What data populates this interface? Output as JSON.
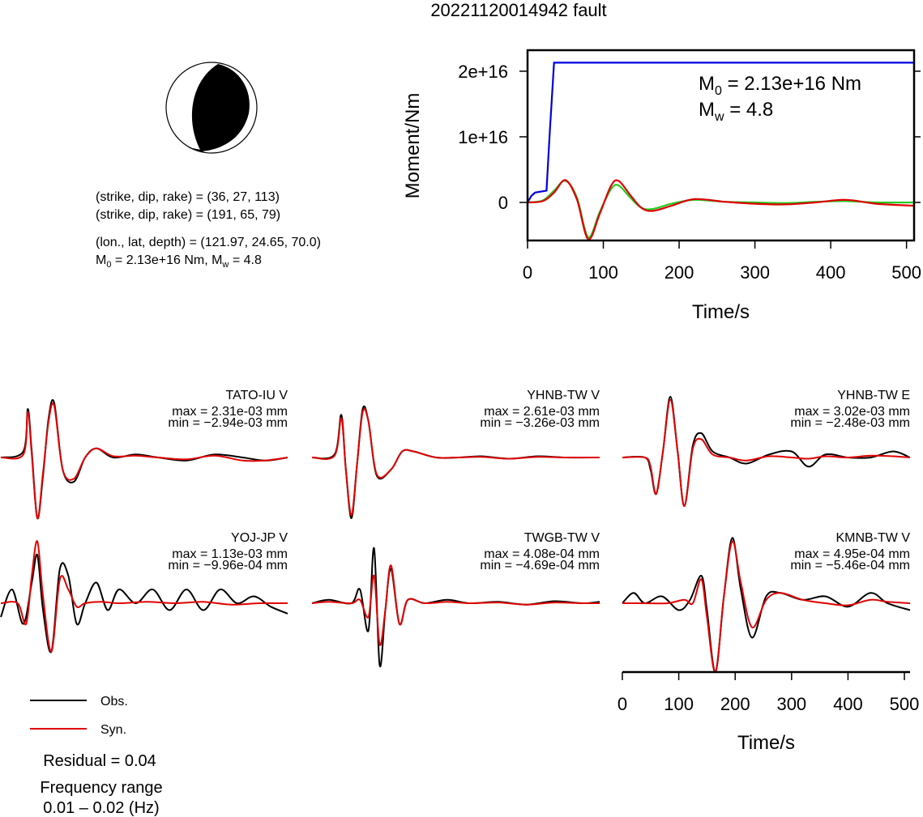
{
  "title": "20221120014942 fault",
  "mechanism": {
    "plane1": "(strike, dip, rake) = (36, 27, 113)",
    "plane2": "(strike, dip, rake) = (191, 65, 79)",
    "location": "(lon., lat, depth) = (121.97, 24.65, 70.0)",
    "moment_prefix": "M",
    "moment_sub": "0",
    "moment_mid": " = 2.13e+16 Nm, M",
    "moment_sub2": "w",
    "moment_suffix": " = 4.8"
  },
  "legend": {
    "obs": "Obs.",
    "syn": "Syn."
  },
  "residual": "Residual = 0.04",
  "freq_title": "Frequency range",
  "freq_value": "0.01 – 0.02 (Hz)",
  "colors": {
    "obs": "#000000",
    "syn": "#e00000",
    "cumulative": "#0000dd",
    "stf_green": "#22cc22"
  },
  "chart_data": [
    {
      "type": "line",
      "name": "moment-function",
      "xlabel": "Time/s",
      "ylabel": "Moment/Nm",
      "xlim": [
        0,
        510
      ],
      "ylim": [
        -5800000000000000.0,
        2.32e+16
      ],
      "xticks": [
        0,
        100,
        200,
        300,
        400,
        500
      ],
      "yticks": [
        0,
        1e+16,
        2e+16
      ],
      "ytick_labels": [
        "0",
        "1e+16",
        "2e+16"
      ],
      "annotation": {
        "m0_base": "M",
        "m0_sub": "0",
        "m0_rest": " = 2.13e+16 Nm",
        "mw_base": "M",
        "mw_sub": "w",
        "mw_rest": " = 4.8"
      },
      "series": [
        {
          "color": "#0000dd",
          "x": [
            0,
            5,
            10,
            25,
            29,
            35,
            510
          ],
          "y": [
            0,
            1000000000000000.0,
            1500000000000000.0,
            1800000000000000.0,
            1e+16,
            2.13e+16,
            2.13e+16
          ]
        },
        {
          "color": "#22cc22",
          "x": [
            0,
            20,
            35,
            50,
            65,
            80,
            95,
            110,
            120,
            135,
            150,
            165,
            190,
            220,
            260,
            300,
            340,
            380,
            420,
            460,
            510
          ],
          "y": [
            0,
            300000000000000.0,
            1800000000000000.0,
            3300000000000000.0,
            800000000000000.0,
            -5300000000000000.0,
            -1500000000000000.0,
            2000000000000000.0,
            2600000000000000.0,
            800000000000000.0,
            -800000000000000.0,
            -1000000000000000.0,
            -200000000000000.0,
            400000000000000.0,
            100000000000000.0,
            0,
            -100000000000000.0,
            100000000000000.0,
            200000000000000.0,
            0,
            0
          ]
        },
        {
          "color": "#e00000",
          "x": [
            0,
            20,
            35,
            50,
            65,
            80,
            95,
            110,
            120,
            135,
            150,
            165,
            190,
            220,
            260,
            300,
            340,
            380,
            420,
            460,
            510
          ],
          "y": [
            0,
            200000000000000.0,
            1500000000000000.0,
            3400000000000000.0,
            500000000000000.0,
            -5600000000000000.0,
            -1800000000000000.0,
            2500000000000000.0,
            3300000000000000.0,
            1200000000000000.0,
            -800000000000000.0,
            -1300000000000000.0,
            -500000000000000.0,
            500000000000000.0,
            100000000000000.0,
            -200000000000000.0,
            -300000000000000.0,
            0,
            400000000000000.0,
            -200000000000000.0,
            -500000000000000.0
          ]
        }
      ]
    },
    {
      "type": "line",
      "name": "waveforms",
      "xlabel": "Time/s",
      "xlim": [
        0,
        510
      ],
      "xticks": [
        0,
        100,
        200,
        300,
        400,
        500
      ],
      "stations": [
        {
          "label": "TATO-IU V",
          "max": "max = 2.31e-03 mm",
          "min": "min = −2.94e-03 mm",
          "obs": {
            "x": [
              0,
              40,
              48,
              55,
              65,
              75,
              85,
              95,
              110,
              130,
              150,
              170,
              200,
              240,
              280,
              330,
              380,
              430,
              470,
              510
            ],
            "y": [
              0,
              0.1,
              0.8,
              0.1,
              -1.0,
              -0.3,
              0.65,
              0.9,
              -0.2,
              -0.4,
              0,
              0.15,
              0,
              0.05,
              0,
              -0.05,
              0.05,
              0,
              -0.05,
              0
            ]
          },
          "syn": {
            "x": [
              0,
              40,
              48,
              55,
              65,
              75,
              85,
              95,
              110,
              130,
              150,
              170,
              200,
              240,
              280,
              330,
              380,
              430,
              470,
              510
            ],
            "y": [
              0,
              0.05,
              0.75,
              0.05,
              -1.0,
              -0.25,
              0.6,
              0.85,
              -0.2,
              -0.35,
              0,
              0.15,
              0.02,
              0.03,
              0,
              -0.03,
              0.03,
              -0.05,
              -0.05,
              0
            ]
          }
        },
        {
          "label": "YHNB-TW V",
          "max": "max = 2.61e-03 mm",
          "min": "min = −3.26e-03 mm",
          "obs": {
            "x": [
              0,
              40,
              52,
              60,
              70,
              80,
              90,
              100,
              115,
              140,
              160,
              180,
              220,
              260,
              300,
              350,
              400,
              450,
              510
            ],
            "y": [
              0,
              0.05,
              0.7,
              -0.2,
              -1.0,
              -0.1,
              0.8,
              0.6,
              -0.3,
              -0.2,
              0.1,
              0.1,
              0,
              0,
              0.02,
              -0.02,
              0.02,
              0,
              0
            ]
          },
          "syn": {
            "x": [
              0,
              40,
              52,
              60,
              70,
              80,
              90,
              100,
              115,
              140,
              160,
              180,
              220,
              260,
              300,
              350,
              400,
              450,
              510
            ],
            "y": [
              0,
              0.03,
              0.65,
              -0.2,
              -0.95,
              -0.1,
              0.75,
              0.6,
              -0.28,
              -0.2,
              0.1,
              0.1,
              0,
              0,
              0.01,
              -0.02,
              0.01,
              0,
              0
            ]
          }
        },
        {
          "label": "YHNB-TW E",
          "max": "max = 3.02e-03 mm",
          "min": "min = −2.48e-03 mm",
          "obs": {
            "x": [
              0,
              40,
              50,
              60,
              72,
              85,
              98,
              110,
              125,
              140,
              160,
              190,
              220,
              260,
              300,
              330,
              360,
              400,
              440,
              480,
              510
            ],
            "y": [
              0,
              0,
              -0.2,
              -0.6,
              0.1,
              1.0,
              0.1,
              -0.8,
              0.2,
              0.4,
              0.1,
              0,
              -0.1,
              0.05,
              0.1,
              -0.15,
              0.05,
              0,
              0,
              0.1,
              0
            ]
          },
          "syn": {
            "x": [
              0,
              40,
              50,
              60,
              72,
              85,
              98,
              110,
              125,
              140,
              160,
              190,
              220,
              260,
              300,
              330,
              360,
              400,
              440,
              480,
              510
            ],
            "y": [
              0,
              0,
              -0.15,
              -0.6,
              0.1,
              0.95,
              0.1,
              -0.8,
              0.15,
              0.3,
              0.05,
              0,
              -0.05,
              0.02,
              0,
              -0.02,
              0.02,
              0,
              0.03,
              0.02,
              0
            ]
          }
        },
        {
          "label": "YOJ-JP V",
          "max": "max = 1.13e-03 mm",
          "min": "min = −9.96e-04 mm",
          "obs": {
            "x": [
              0,
              20,
              40,
              55,
              65,
              75,
              90,
              105,
              120,
              135,
              150,
              170,
              190,
              210,
              240,
              270,
              300,
              330,
              360,
              390,
              420,
              450,
              480,
              510
            ],
            "y": [
              -0.2,
              0.2,
              -0.3,
              0.3,
              0.7,
              -0.1,
              -0.7,
              0.5,
              0.4,
              -0.3,
              0,
              0.3,
              -0.1,
              0.2,
              0,
              0.2,
              -0.1,
              0.2,
              -0.1,
              0.2,
              0,
              0.1,
              -0.05,
              -0.15
            ]
          },
          "syn": {
            "x": [
              0,
              30,
              45,
              55,
              65,
              75,
              90,
              105,
              120,
              135,
              150,
              180,
              210,
              260,
              310,
              360,
              410,
              460,
              510
            ],
            "y": [
              0,
              0,
              -0.3,
              0.4,
              0.9,
              0.1,
              -0.7,
              0.35,
              0.2,
              -0.05,
              0,
              0.02,
              0,
              0.02,
              0,
              0.02,
              -0.02,
              0,
              0
            ]
          }
        },
        {
          "label": "TWGB-TW V",
          "max": "max = 4.08e-04 mm",
          "min": "min = −4.69e-04 mm",
          "obs": {
            "x": [
              0,
              30,
              70,
              85,
              100,
              110,
              120,
              130,
              140,
              155,
              170,
              200,
              240,
              280,
              330,
              380,
              430,
              480,
              510
            ],
            "y": [
              0,
              0.05,
              0,
              0.2,
              -0.4,
              0.8,
              -0.9,
              -0.1,
              0.5,
              -0.3,
              0.05,
              0,
              0.05,
              0,
              0.02,
              -0.02,
              0.03,
              0,
              0.02
            ]
          },
          "syn": {
            "x": [
              0,
              30,
              70,
              85,
              100,
              110,
              120,
              130,
              140,
              155,
              170,
              200,
              240,
              280,
              330,
              380,
              430,
              480,
              510
            ],
            "y": [
              0,
              0.02,
              0,
              0.05,
              -0.2,
              0.4,
              -0.6,
              -0.1,
              0.55,
              -0.3,
              0.05,
              0,
              0.02,
              0,
              0.01,
              -0.02,
              0.01,
              0,
              0
            ]
          }
        },
        {
          "label": "KMNB-TW V",
          "max": "max = 4.95e-04 mm",
          "min": "min = −5.46e-04 mm",
          "obs": {
            "x": [
              0,
              20,
              40,
              70,
              100,
              120,
              140,
              150,
              165,
              180,
              195,
              210,
              230,
              255,
              280,
              320,
              360,
              400,
              440,
              470,
              510
            ],
            "y": [
              0,
              0.15,
              0,
              0.1,
              -0.1,
              0.05,
              0.4,
              -0.1,
              -1.0,
              0.1,
              0.95,
              0.2,
              -0.5,
              0.1,
              0.15,
              0.05,
              0.1,
              -0.05,
              0.15,
              0,
              -0.1
            ]
          },
          "syn": {
            "x": [
              0,
              40,
              80,
              110,
              125,
              140,
              150,
              165,
              180,
              195,
              210,
              230,
              255,
              280,
              320,
              360,
              400,
              440,
              470,
              510
            ],
            "y": [
              0,
              0,
              0,
              0.05,
              0,
              0.35,
              -0.2,
              -1.0,
              0.1,
              0.9,
              0.3,
              -0.35,
              0.05,
              0.15,
              0.05,
              0,
              -0.03,
              0.05,
              0.02,
              0
            ]
          }
        }
      ]
    }
  ]
}
